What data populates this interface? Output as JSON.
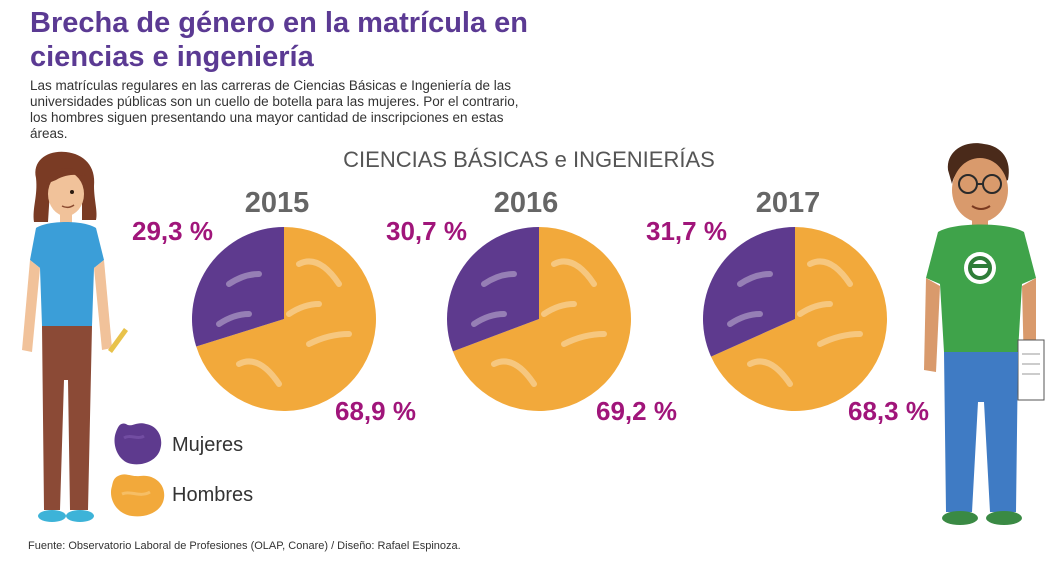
{
  "header": {
    "title": "Brecha de género en la matrícula en ciencias e ingeniería",
    "subtitle": "Las matrículas regulares en las carreras de Ciencias Básicas e Ingeniería de las universidades públicas son un cuello de botella para las mujeres. Por el contrario, los hombres siguen presentando una mayor cantidad de inscripciones en estas áreas."
  },
  "footer": {
    "source": "Fuente: Observatorio Laboral de Profesiones (OLAP, Conare) / Diseño: Rafael Espinoza."
  },
  "colors": {
    "mujeres": "#5e3a8e",
    "hombres": "#f2a93b",
    "title": "#5b3a93",
    "percent": "#a0157a"
  },
  "chart_data": {
    "type": "pie",
    "title": "CIENCIAS BÁSICAS e INGENIERÍAS",
    "legend": [
      "Mujeres",
      "Hombres"
    ],
    "legend_position": "bottom-left",
    "pies": [
      {
        "year": "2015",
        "mujeres": 29.3,
        "hombres": 68.9,
        "mujeres_label": "29,3 %",
        "hombres_label": "68,9 %"
      },
      {
        "year": "2016",
        "mujeres": 30.7,
        "hombres": 69.2,
        "mujeres_label": "30,7 %",
        "hombres_label": "69,2 %"
      },
      {
        "year": "2017",
        "mujeres": 31.7,
        "hombres": 68.3,
        "mujeres_label": "31,7 %",
        "hombres_label": "68,3 %"
      }
    ]
  }
}
